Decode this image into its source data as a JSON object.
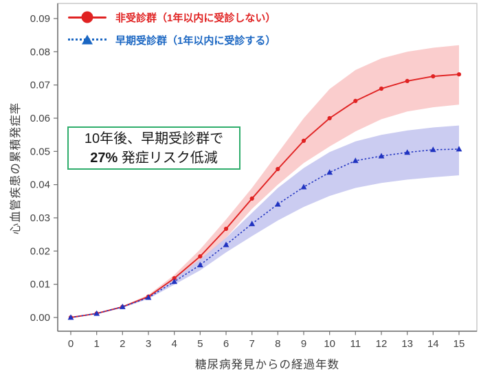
{
  "chart_data": {
    "type": "line",
    "title": "",
    "xlabel": "糖尿病発見からの経過年数",
    "ylabel": "心血管疾患の累積発症率",
    "x": [
      0,
      1,
      2,
      3,
      4,
      5,
      6,
      7,
      8,
      9,
      10,
      11,
      12,
      13,
      14,
      15
    ],
    "y_ticks": [
      "0.00",
      "0.01",
      "0.02",
      "0.03",
      "0.04",
      "0.05",
      "0.06",
      "0.07",
      "0.08",
      "0.09"
    ],
    "ylim": [
      0,
      0.094
    ],
    "xlim": [
      0,
      15
    ],
    "grid": false,
    "legend_position": "top-left",
    "series": [
      {
        "name": "非受診群（1年以内に受診しない）",
        "marker": "circle",
        "line_style": "solid",
        "color": "#e02222",
        "band_color": "#fac9c9",
        "values": [
          0.0,
          0.0012,
          0.0032,
          0.0063,
          0.0118,
          0.0184,
          0.0267,
          0.0358,
          0.0447,
          0.0532,
          0.06,
          0.0652,
          0.0689,
          0.0712,
          0.0726,
          0.0732
        ],
        "ci_upper": [
          0.0,
          0.0013,
          0.0034,
          0.0068,
          0.0128,
          0.0205,
          0.0295,
          0.039,
          0.0495,
          0.06,
          0.0688,
          0.0745,
          0.078,
          0.08,
          0.0812,
          0.082
        ],
        "ci_lower": [
          0.0,
          0.001,
          0.0029,
          0.0058,
          0.0108,
          0.0163,
          0.024,
          0.0327,
          0.04,
          0.0465,
          0.0515,
          0.056,
          0.0597,
          0.062,
          0.0633,
          0.0641
        ]
      },
      {
        "name": "早期受診群（1年以内に受診する）",
        "marker": "triangle",
        "line_style": "dotted",
        "color": "#2033c0",
        "legend_color": "#1a66c2",
        "band_color": "#c7c8f0",
        "values": [
          0.0,
          0.0012,
          0.0032,
          0.006,
          0.0108,
          0.0158,
          0.0219,
          0.0282,
          0.0341,
          0.0393,
          0.0437,
          0.0472,
          0.0486,
          0.0497,
          0.0505,
          0.0507
        ],
        "ci_upper": [
          0.0,
          0.0013,
          0.0034,
          0.0064,
          0.0117,
          0.0175,
          0.024,
          0.0315,
          0.039,
          0.045,
          0.0498,
          0.053,
          0.055,
          0.0563,
          0.0572,
          0.0578
        ],
        "ci_lower": [
          0.0,
          0.001,
          0.0029,
          0.0056,
          0.0099,
          0.0142,
          0.0196,
          0.0245,
          0.0292,
          0.0333,
          0.0366,
          0.039,
          0.0405,
          0.0415,
          0.0422,
          0.0428
        ]
      }
    ]
  },
  "annotation": {
    "line1": "10年後、早期受診群で",
    "risk_value": "27%",
    "line2": " 発症リスク低減",
    "border_color": "#2ead6b"
  },
  "colors": {
    "axis": "#6e6e6e",
    "plot_border": "#c9c9c9",
    "tick_text": "#404040"
  }
}
